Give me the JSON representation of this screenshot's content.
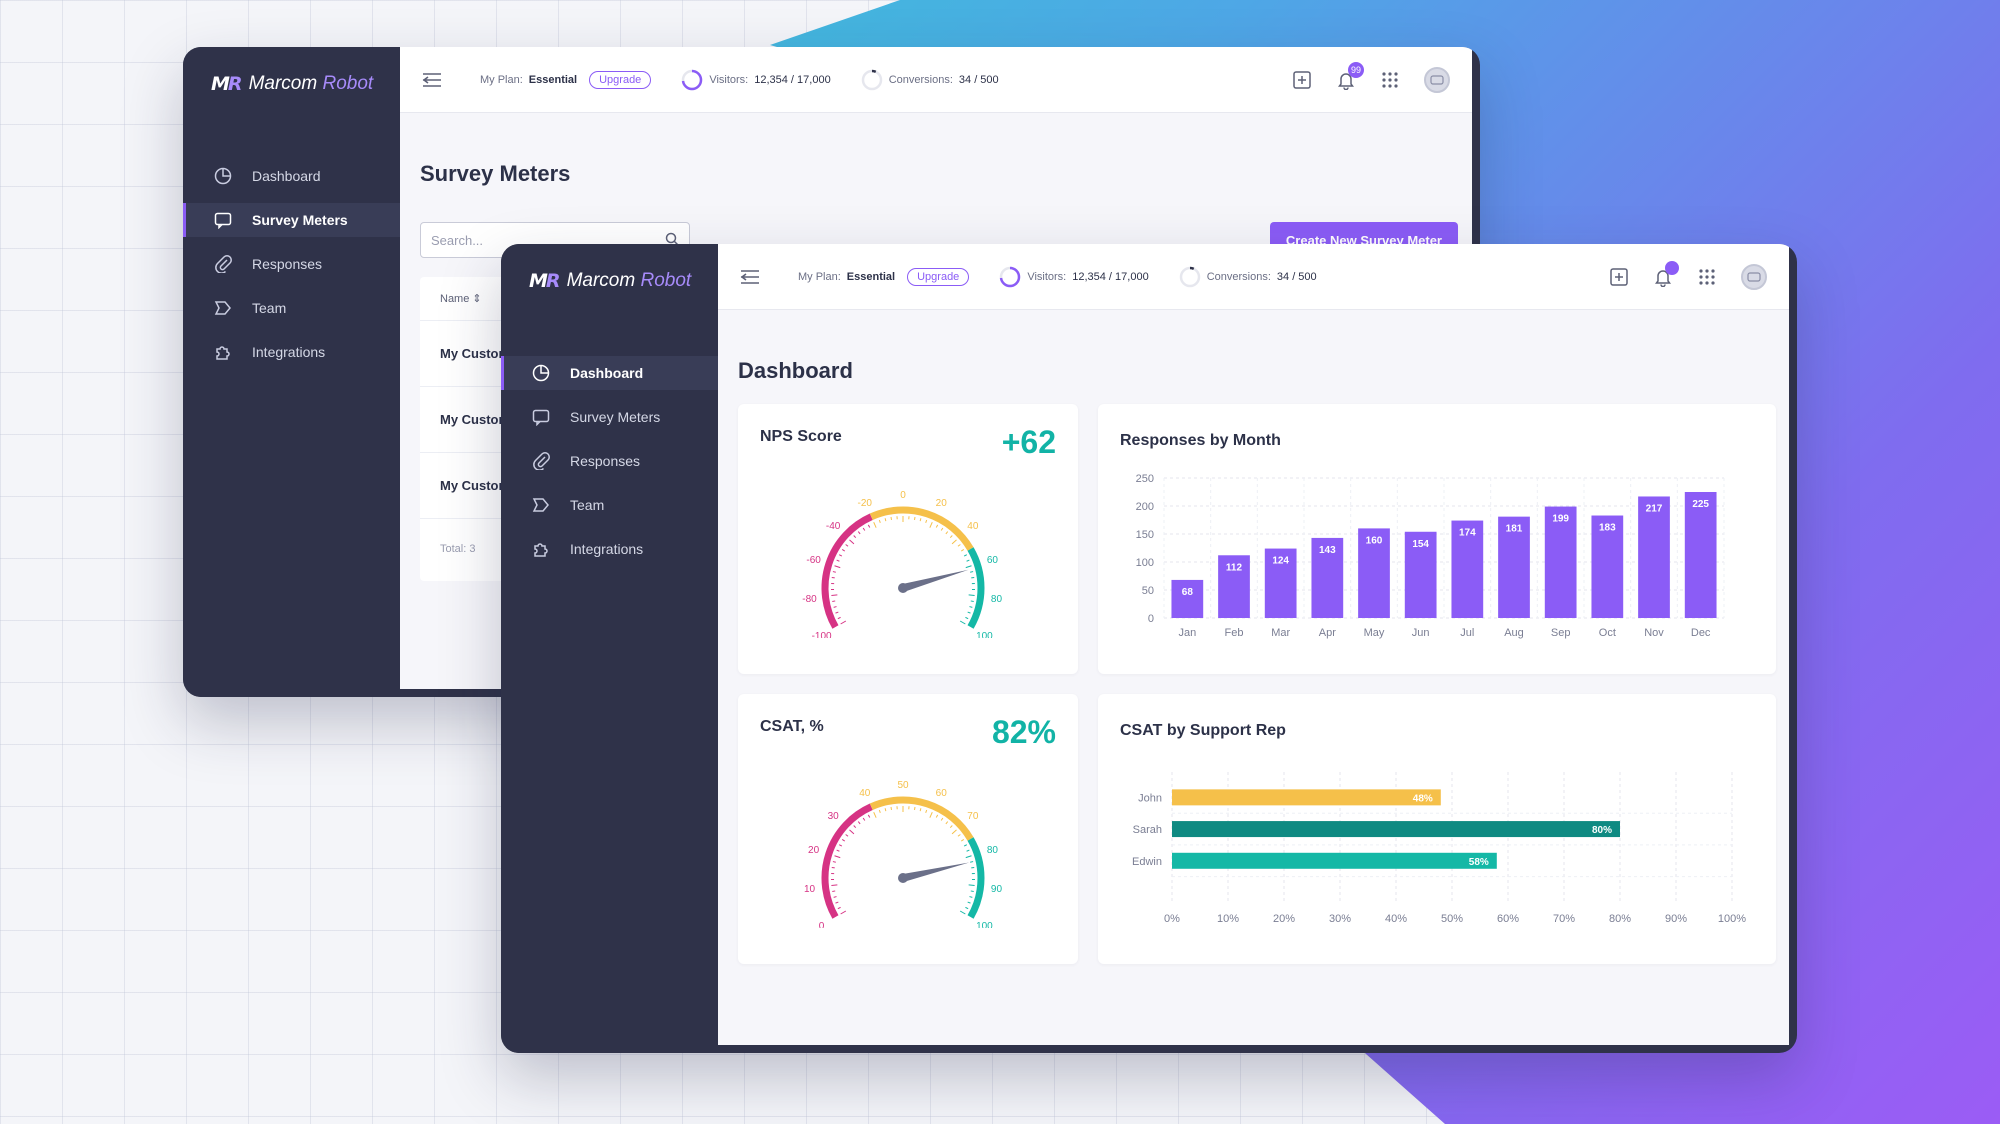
{
  "colors": {
    "accent": "#8b5cf6",
    "teal": "#12b3a6",
    "sidebar": "#2f3249",
    "bar_purple": "#8b5cf6",
    "gauge_red": "#d63384",
    "gauge_yellow": "#f5c04a",
    "gauge_teal": "#14b8a6",
    "needle": "#6b7089"
  },
  "brand": {
    "mark": "MR",
    "name_primary": "Marcom",
    "name_secondary": "Robot"
  },
  "topbar": {
    "plan_label": "My Plan:",
    "plan_value": "Essential",
    "upgrade_label": "Upgrade",
    "visitors_label": "Visitors:",
    "visitors_value": "12,354 / 17,000",
    "visitors_fraction": 0.727,
    "conversions_label": "Conversions:",
    "conversions_value": "34 / 500",
    "conversions_fraction": 0.068,
    "notifications_count": "99"
  },
  "nav": [
    {
      "label": "Dashboard",
      "icon": "pie-chart-icon"
    },
    {
      "label": "Survey Meters",
      "icon": "chat-bubble-icon"
    },
    {
      "label": "Responses",
      "icon": "paperclip-icon"
    },
    {
      "label": "Team",
      "icon": "team-icon"
    },
    {
      "label": "Integrations",
      "icon": "puzzle-icon"
    }
  ],
  "back_window": {
    "title": "Survey Meters",
    "search_placeholder": "Search...",
    "create_button": "Create New Survey Meter",
    "name_header": "Name ⇕",
    "rows": [
      "My Customer Survey",
      "My Customer Survey",
      "My Customer Survey"
    ],
    "total": "Total: 3"
  },
  "dashboard": {
    "title": "Dashboard",
    "nps": {
      "title": "NPS Score",
      "value": "+62",
      "needle_value": 62,
      "ticks": [
        "-100",
        "-80",
        "-60",
        "-40",
        "-20",
        "0",
        "20",
        "40",
        "60",
        "80",
        "100"
      ]
    },
    "csat": {
      "title": "CSAT, %",
      "value": "82%",
      "needle_value": 82,
      "ticks": [
        "0",
        "10",
        "20",
        "30",
        "40",
        "50",
        "60",
        "70",
        "80",
        "90",
        "100"
      ]
    }
  },
  "chart_data": [
    {
      "type": "bar",
      "title": "Responses by Month",
      "categories": [
        "Jan",
        "Feb",
        "Mar",
        "Apr",
        "May",
        "Jun",
        "Jul",
        "Aug",
        "Sep",
        "Oct",
        "Nov",
        "Dec"
      ],
      "values": [
        68,
        112,
        124,
        143,
        160,
        154,
        174,
        181,
        199,
        183,
        217,
        225
      ],
      "yticks": [
        "0",
        "50",
        "100",
        "150",
        "200",
        "250"
      ],
      "ylim": [
        0,
        250
      ],
      "grid": true
    },
    {
      "type": "bar",
      "orientation": "horizontal",
      "title": "CSAT by Support Rep",
      "categories": [
        "John",
        "Sarah",
        "Edwin"
      ],
      "values": [
        48,
        80,
        58
      ],
      "value_labels": [
        "48%",
        "80%",
        "58%"
      ],
      "bar_colors": [
        "#f5c04a",
        "#0f8a82",
        "#14b8a6"
      ],
      "xticks": [
        "0%",
        "10%",
        "20%",
        "30%",
        "40%",
        "50%",
        "60%",
        "70%",
        "80%",
        "90%",
        "100%"
      ],
      "xlim": [
        0,
        100
      ],
      "grid": true
    }
  ]
}
